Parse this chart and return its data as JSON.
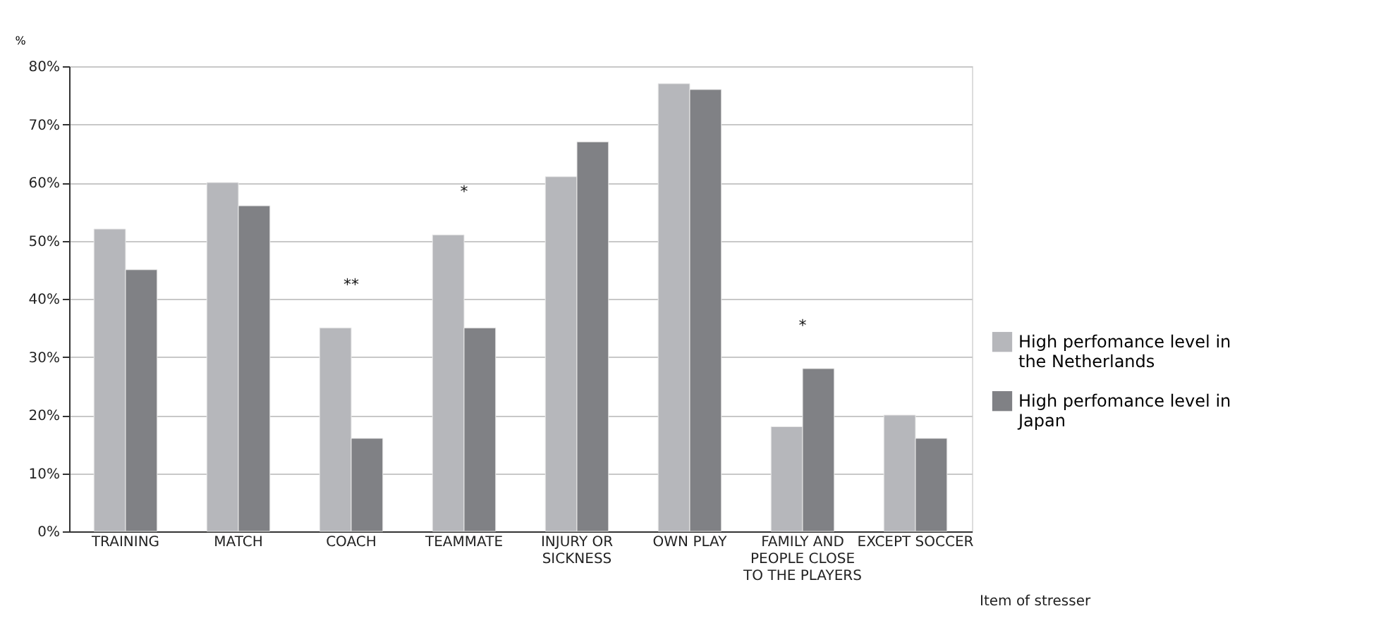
{
  "chart_data": {
    "type": "bar",
    "ylabel": "%",
    "xlabel": "Item of stresser",
    "categories": [
      "TRAINING",
      "MATCH",
      "COACH",
      "TEAMMATE",
      "INJURY OR SICKNESS",
      "OWN PLAY",
      "FAMILY AND PEOPLE CLOSE TO THE PLAYERS",
      "EXCEPT SOCCER"
    ],
    "series": [
      {
        "name": "High perfomance level in the Netherlands",
        "color": "#b6b7bb",
        "values": [
          52,
          60,
          35,
          51,
          61,
          77,
          18,
          20
        ]
      },
      {
        "name": "High perfomance level in Japan",
        "color": "#808185",
        "values": [
          45,
          56,
          16,
          35,
          67,
          76,
          28,
          16
        ]
      }
    ],
    "ylim": [
      0,
      80
    ],
    "yticks": [
      {
        "value": 0,
        "label": "0%"
      },
      {
        "value": 10,
        "label": "10%"
      },
      {
        "value": 20,
        "label": "20%"
      },
      {
        "value": 30,
        "label": "30%"
      },
      {
        "value": 40,
        "label": "40%"
      },
      {
        "value": 50,
        "label": "50%"
      },
      {
        "value": 60,
        "label": "60%"
      },
      {
        "value": 70,
        "label": "70%"
      },
      {
        "value": 80,
        "label": "80%"
      }
    ],
    "grid": "y",
    "legend": "right",
    "annotations": [
      "**",
      "*",
      "*"
    ]
  }
}
